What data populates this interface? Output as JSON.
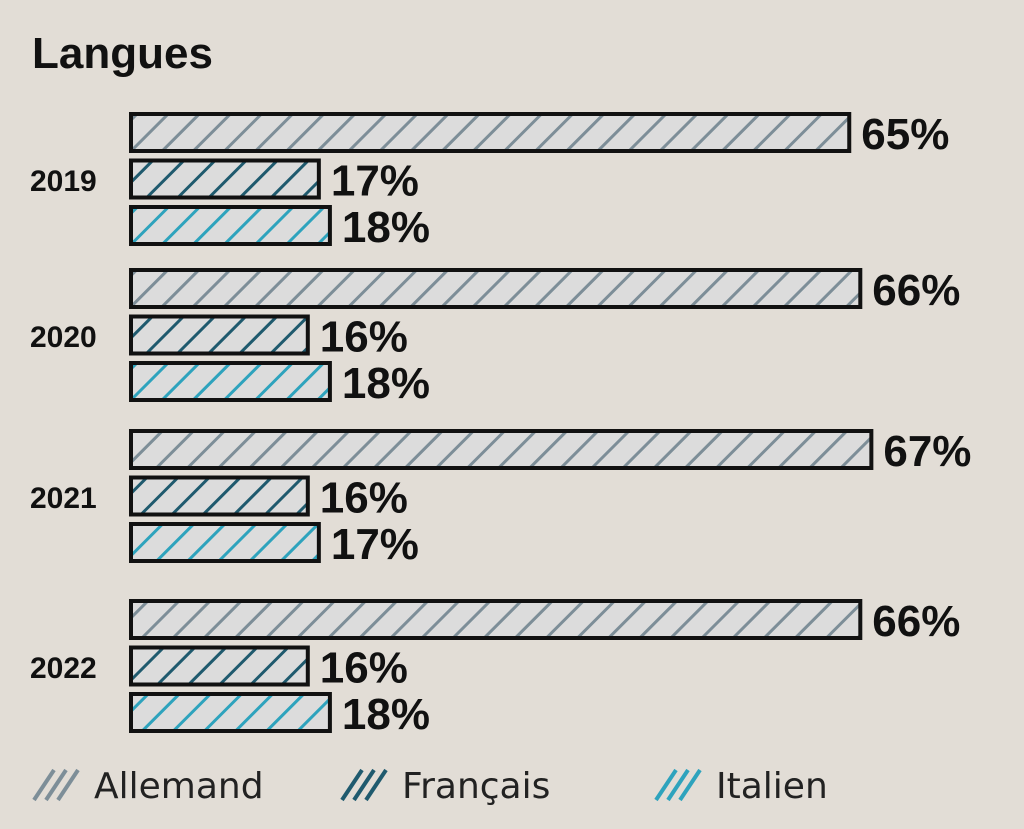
{
  "chart_data": {
    "type": "bar",
    "orientation": "horizontal",
    "title": "Langues",
    "categories": [
      "2019",
      "2020",
      "2021",
      "2022"
    ],
    "series": [
      {
        "name": "Allemand",
        "values": [
          65,
          66,
          67,
          66
        ],
        "labels": [
          "65%",
          "66%",
          "67%",
          "66%"
        ],
        "color": "#7d8e98"
      },
      {
        "name": "Français",
        "values": [
          17,
          16,
          16,
          16
        ],
        "labels": [
          "17%",
          "16%",
          "16%",
          "16%"
        ],
        "color": "#1f5a6e"
      },
      {
        "name": "Italien",
        "values": [
          18,
          18,
          17,
          18
        ],
        "labels": [
          "18%",
          "18%",
          "17%",
          "18%"
        ],
        "color": "#2ea3bd"
      }
    ],
    "value_unit": "%",
    "xlim": [
      0,
      100
    ],
    "grid": false,
    "legend_position": "bottom",
    "bar_fill_pattern": "diagonal-hatch",
    "background_color": "#e2ddd6",
    "bar_base_color": "#dcdcdc",
    "bar_border_color": "#111111"
  }
}
